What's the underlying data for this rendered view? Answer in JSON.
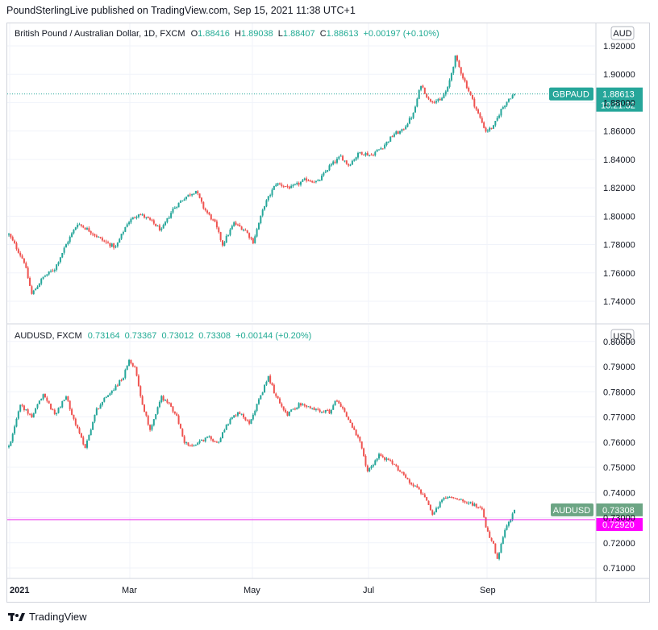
{
  "header": {
    "published_by": "PoundSterlingLive published on TradingView.com, Sep 15, 2021 11:38 UTC+1"
  },
  "footer": {
    "brand": "TradingView"
  },
  "colors": {
    "up": "#26a69a",
    "down": "#ef5350",
    "grid": "#f0f3fa",
    "horizontal_line": "#e91ee9",
    "label_gbp": "#26a69a",
    "label_aud": "#6ca584",
    "label_line": "#ff00ff"
  },
  "pane_top": {
    "legend": {
      "symbol": "British Pound / Australian Dollar, 1D, FXCM",
      "o_label": "O",
      "o": "1.88416",
      "h_label": "H",
      "h": "1.89038",
      "l_label": "L",
      "l": "1.88407",
      "c_label": "C",
      "c": "1.88613",
      "change": "+0.00197 (+0.10%)"
    },
    "currency": "AUD",
    "price_label": {
      "symbol": "GBPAUD",
      "price": "1.88613",
      "countdown": "10:21:32"
    }
  },
  "pane_bottom": {
    "legend": {
      "symbol": "AUDUSD, FXCM",
      "o": "0.73164",
      "h": "0.73367",
      "l": "0.73012",
      "c": "0.73308",
      "change": "+0.00144 (+0.20%)"
    },
    "currency": "USD",
    "price_label": {
      "symbol": "AUDUSD",
      "price": "0.73308"
    },
    "line_label": "0.72920"
  },
  "chart_data": [
    {
      "type": "candlestick",
      "symbol": "GBPAUD",
      "timeframe": "1D",
      "ylim": [
        1.73,
        1.92
      ],
      "y_ticks": [
        "1.92000",
        "1.90000",
        "1.88000",
        "1.86000",
        "1.84000",
        "1.82000",
        "1.80000",
        "1.78000",
        "1.76000",
        "1.74000"
      ],
      "x_ticks": [
        "2021",
        "Mar",
        "May",
        "Jul",
        "Sep"
      ],
      "last_price": 1.88613,
      "close_path": [
        [
          0,
          1.787
        ],
        [
          3,
          1.78
        ],
        [
          8,
          1.768
        ],
        [
          12,
          1.745
        ],
        [
          18,
          1.757
        ],
        [
          24,
          1.763
        ],
        [
          30,
          1.78
        ],
        [
          36,
          1.795
        ],
        [
          42,
          1.79
        ],
        [
          50,
          1.782
        ],
        [
          56,
          1.778
        ],
        [
          62,
          1.795
        ],
        [
          68,
          1.802
        ],
        [
          74,
          1.797
        ],
        [
          80,
          1.79
        ],
        [
          86,
          1.805
        ],
        [
          92,
          1.813
        ],
        [
          98,
          1.818
        ],
        [
          102,
          1.806
        ],
        [
          108,
          1.795
        ],
        [
          112,
          1.78
        ],
        [
          118,
          1.795
        ],
        [
          124,
          1.79
        ],
        [
          128,
          1.782
        ],
        [
          134,
          1.808
        ],
        [
          140,
          1.823
        ],
        [
          148,
          1.82
        ],
        [
          156,
          1.826
        ],
        [
          162,
          1.824
        ],
        [
          168,
          1.835
        ],
        [
          174,
          1.842
        ],
        [
          178,
          1.836
        ],
        [
          184,
          1.845
        ],
        [
          190,
          1.843
        ],
        [
          196,
          1.849
        ],
        [
          202,
          1.858
        ],
        [
          206,
          1.86
        ],
        [
          212,
          1.872
        ],
        [
          216,
          1.893
        ],
        [
          220,
          1.882
        ],
        [
          226,
          1.881
        ],
        [
          230,
          1.89
        ],
        [
          234,
          1.912
        ],
        [
          238,
          1.898
        ],
        [
          242,
          1.885
        ],
        [
          246,
          1.872
        ],
        [
          250,
          1.86
        ],
        [
          254,
          1.863
        ],
        [
          258,
          1.875
        ],
        [
          262,
          1.883
        ],
        [
          265,
          1.886
        ]
      ]
    },
    {
      "type": "candlestick",
      "symbol": "AUDUSD",
      "timeframe": "1D",
      "ylim": [
        0.7055,
        0.8005
      ],
      "y_ticks": [
        "0.80000",
        "0.79000",
        "0.78000",
        "0.77000",
        "0.76000",
        "0.75000",
        "0.74000",
        "0.73000",
        "0.72000",
        "0.71000"
      ],
      "x_ticks": [
        "2021",
        "Mar",
        "May",
        "Jul",
        "Sep"
      ],
      "last_price": 0.73308,
      "horizontal_line": 0.7292,
      "close_path": [
        [
          0,
          0.758
        ],
        [
          6,
          0.775
        ],
        [
          12,
          0.77
        ],
        [
          18,
          0.779
        ],
        [
          24,
          0.771
        ],
        [
          30,
          0.778
        ],
        [
          36,
          0.765
        ],
        [
          40,
          0.758
        ],
        [
          46,
          0.773
        ],
        [
          52,
          0.779
        ],
        [
          56,
          0.782
        ],
        [
          60,
          0.786
        ],
        [
          63,
          0.792
        ],
        [
          66,
          0.79
        ],
        [
          70,
          0.775
        ],
        [
          74,
          0.765
        ],
        [
          80,
          0.778
        ],
        [
          84,
          0.775
        ],
        [
          88,
          0.77
        ],
        [
          92,
          0.76
        ],
        [
          96,
          0.758
        ],
        [
          104,
          0.762
        ],
        [
          110,
          0.76
        ],
        [
          114,
          0.767
        ],
        [
          120,
          0.772
        ],
        [
          126,
          0.768
        ],
        [
          132,
          0.778
        ],
        [
          136,
          0.786
        ],
        [
          140,
          0.778
        ],
        [
          146,
          0.771
        ],
        [
          152,
          0.775
        ],
        [
          160,
          0.773
        ],
        [
          168,
          0.772
        ],
        [
          172,
          0.777
        ],
        [
          176,
          0.772
        ],
        [
          180,
          0.766
        ],
        [
          184,
          0.76
        ],
        [
          188,
          0.748
        ],
        [
          194,
          0.755
        ],
        [
          200,
          0.752
        ],
        [
          206,
          0.748
        ],
        [
          210,
          0.744
        ],
        [
          214,
          0.742
        ],
        [
          218,
          0.738
        ],
        [
          222,
          0.731
        ],
        [
          228,
          0.738
        ],
        [
          234,
          0.738
        ],
        [
          238,
          0.737
        ],
        [
          244,
          0.735
        ],
        [
          248,
          0.733
        ],
        [
          250,
          0.726
        ],
        [
          254,
          0.719
        ],
        [
          256,
          0.713
        ],
        [
          260,
          0.725
        ],
        [
          264,
          0.731
        ],
        [
          268,
          0.738
        ],
        [
          272,
          0.745
        ],
        [
          275,
          0.74
        ],
        [
          278,
          0.736
        ],
        [
          282,
          0.734
        ],
        [
          285,
          0.733
        ]
      ]
    }
  ]
}
